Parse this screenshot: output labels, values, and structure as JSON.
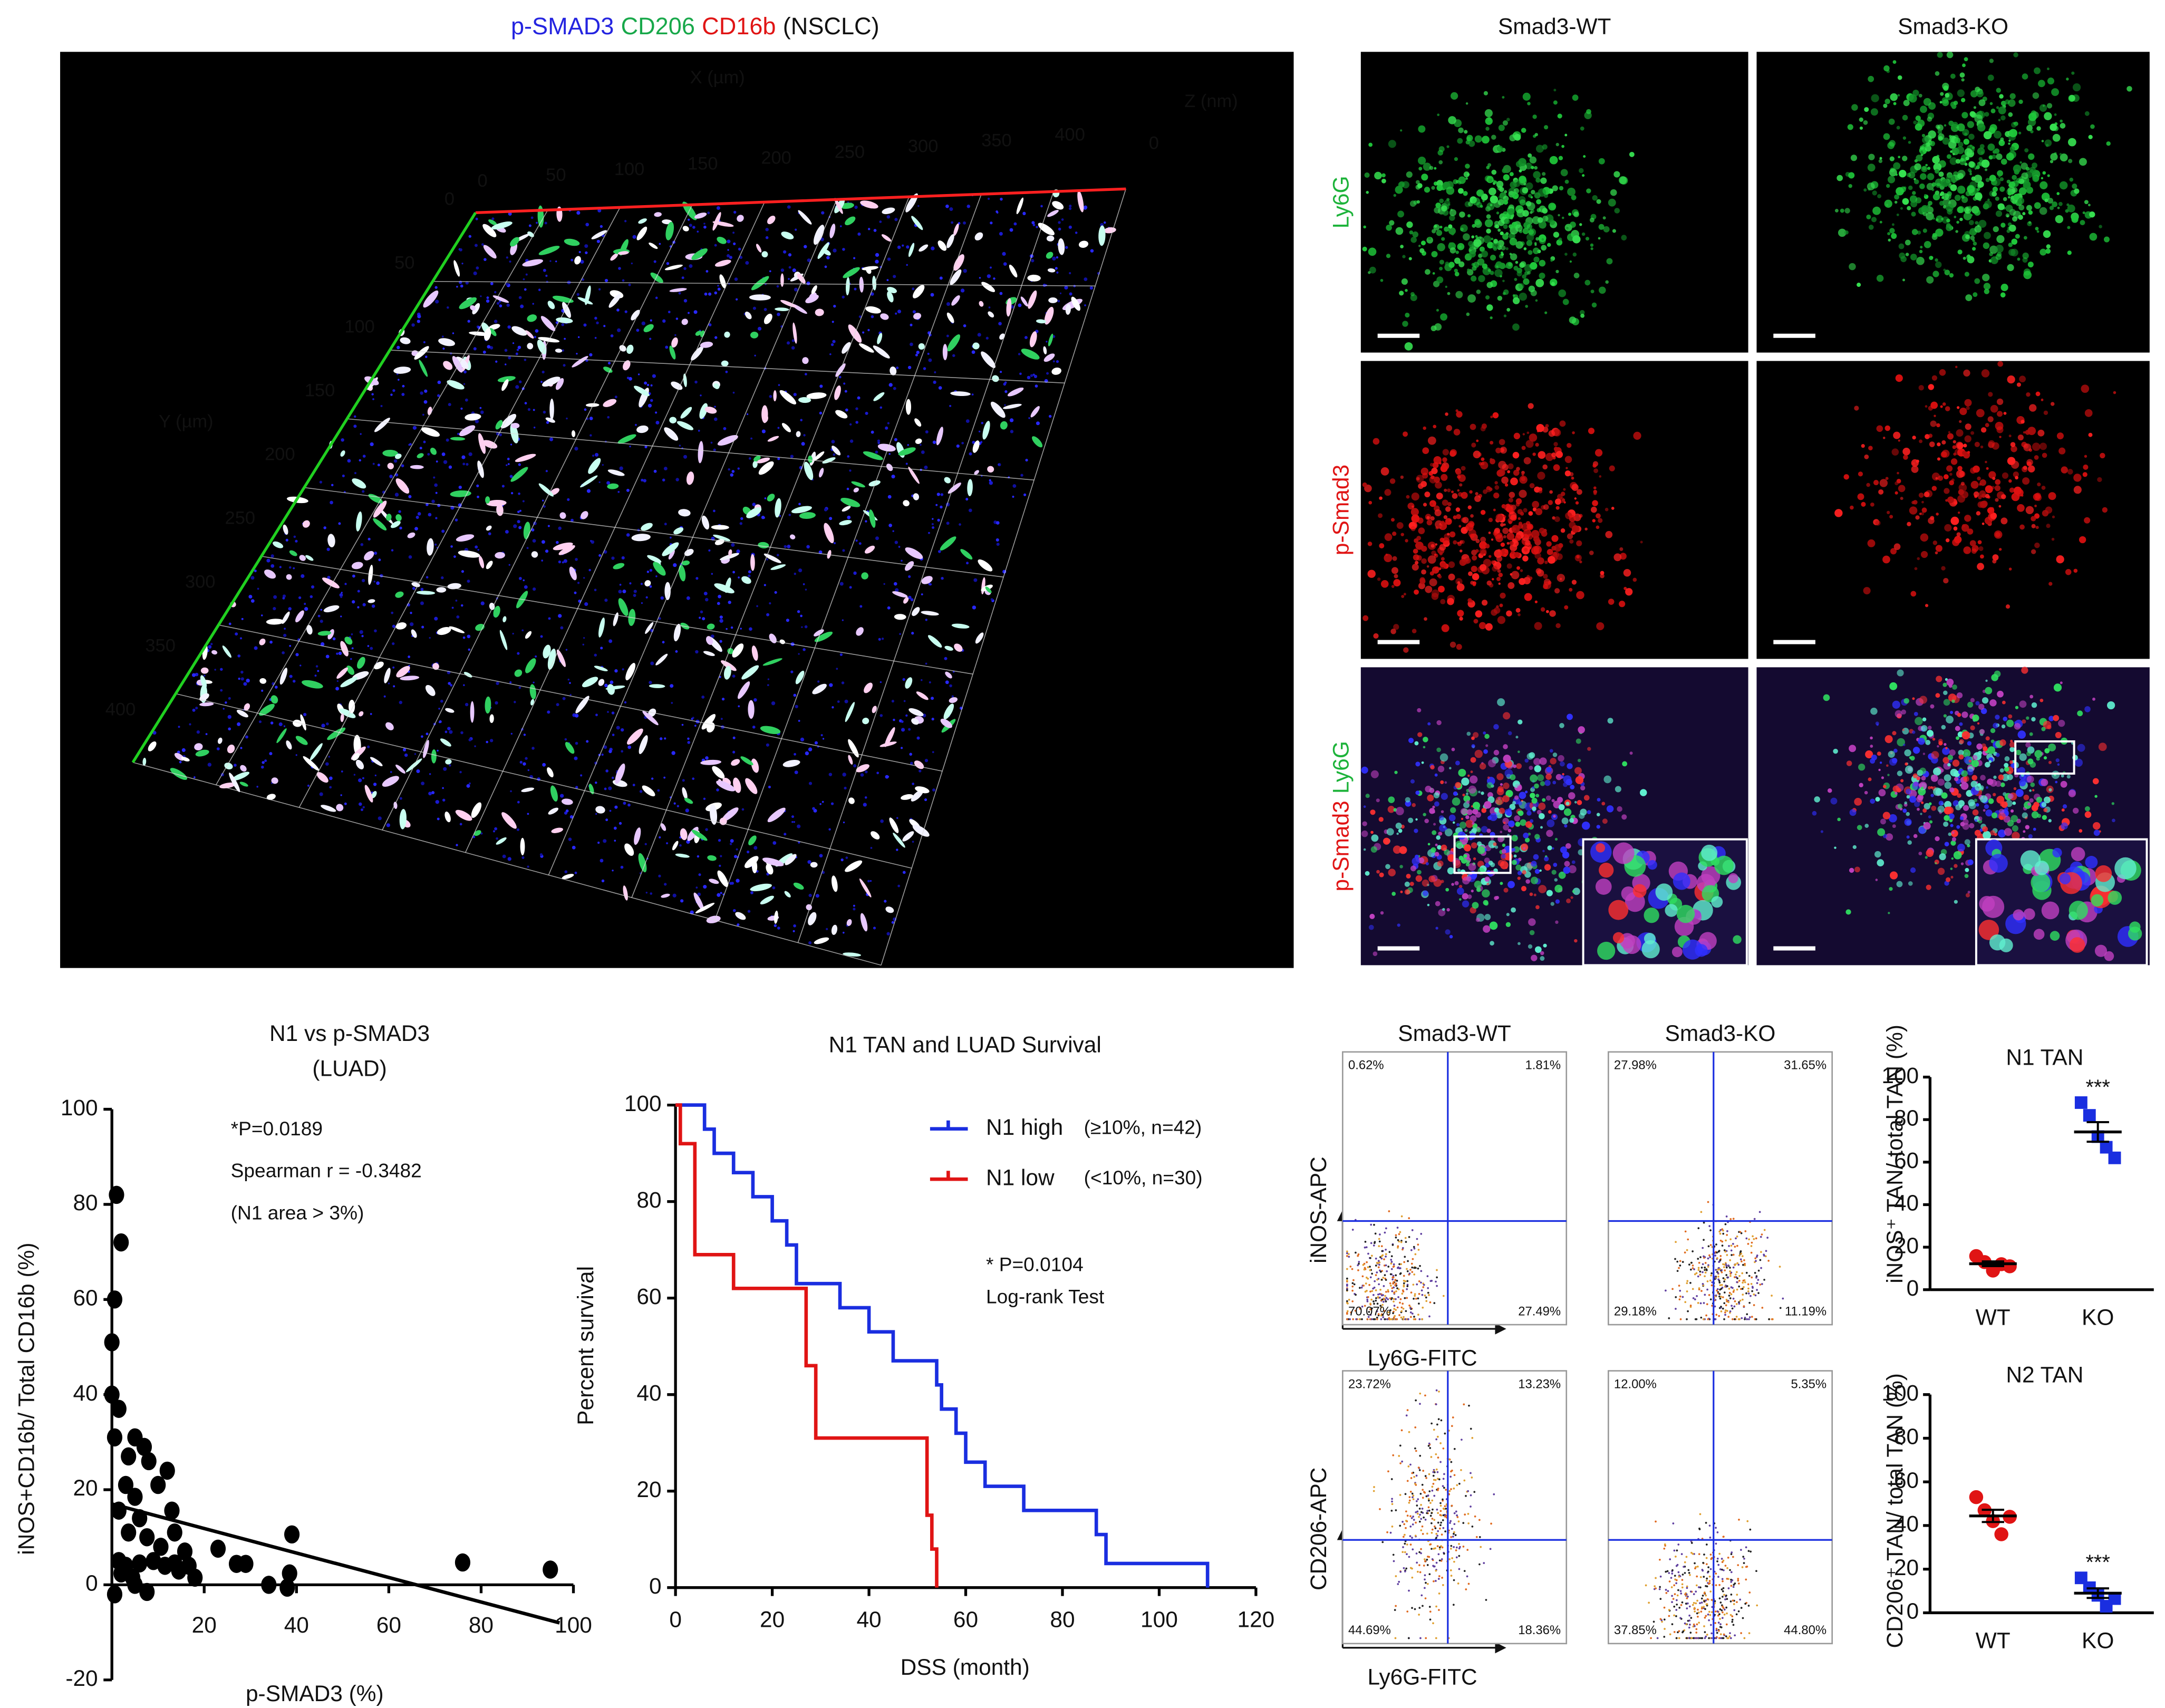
{
  "volume": {
    "title": [
      {
        "text": "p-SMAD3",
        "color": "#2424e0"
      },
      {
        "text": "CD206",
        "color": "#18a84a"
      },
      {
        "text": "CD16b",
        "color": "#e01414"
      },
      {
        "text": "(NSCLC)",
        "color": "#111111"
      }
    ],
    "x_axis_label": "X (µm)",
    "y_axis_label": "Y (µm)",
    "z_axis_label": "Z (nm)",
    "x_ticks": [
      0,
      50,
      100,
      150,
      200,
      250,
      300,
      350,
      400
    ],
    "y_ticks": [
      0,
      50,
      100,
      150,
      200,
      250,
      300,
      350,
      400
    ],
    "z_ticks": [
      0
    ]
  },
  "microscopy": {
    "columns": [
      "Smad3-WT",
      "Smad3-KO"
    ],
    "rows": [
      [
        {
          "text": "Ly6G",
          "color": "#1db33a"
        }
      ],
      [
        {
          "text": "p-Smad3",
          "color": "#e01414"
        }
      ],
      [
        {
          "text": "p-Smad3",
          "color": "#e01414"
        },
        {
          "text": "Ly6G",
          "color": "#1db33a"
        }
      ]
    ]
  },
  "flow": {
    "columns": [
      "Smad3-WT",
      "Smad3-KO"
    ],
    "rows": [
      {
        "y_label": "iNOS-APC",
        "x_label": "Ly6G-FITC",
        "percentages": [
          [
            "0.62%",
            "1.81%",
            "70.07%",
            "27.49%"
          ],
          [
            "27.98%",
            "31.65%",
            "29.18%",
            "11.19%"
          ]
        ]
      },
      {
        "y_label": "CD206-APC",
        "x_label": "Ly6G-FITC",
        "percentages": [
          [
            "23.72%",
            "13.23%",
            "44.69%",
            "18.36%"
          ],
          [
            "12.00%",
            "5.35%",
            "37.85%",
            "44.80%"
          ]
        ]
      }
    ]
  },
  "chart_data": [
    {
      "type": "scatter",
      "title": [
        "N1 vs p-SMAD3",
        "(LUAD)"
      ],
      "x_label": "p-SMAD3 (%)",
      "y_label": "iNOS+CD16b/ Total CD16b (%)",
      "annotations": [
        "*P=0.0189",
        "Spearman r = -0.3482",
        "(N1 area > 3%)"
      ],
      "color": "#000000",
      "x": [
        1,
        2,
        0.6,
        0,
        0,
        1.5,
        0.6,
        5,
        7,
        3.6,
        8,
        12,
        3,
        5,
        10,
        13,
        1.5,
        6,
        3.6,
        7.6,
        10.6,
        13.6,
        15.8,
        1.5,
        3,
        6,
        9,
        11.5,
        13.6,
        16.7,
        23,
        27,
        29,
        34,
        38,
        38.5,
        39,
        76,
        95,
        7.6,
        0.6,
        5,
        2,
        4.5,
        14.5,
        18
      ],
      "values": [
        82,
        72,
        60,
        51,
        40,
        37,
        31,
        31,
        29,
        27,
        26,
        24,
        21,
        18.5,
        21,
        15.6,
        15.6,
        14,
        11,
        10,
        8,
        11,
        7,
        5,
        4,
        4.5,
        5,
        4,
        4.5,
        4,
        7.6,
        4.4,
        4.4,
        0,
        -0.6,
        2.4,
        10.6,
        4.7,
        3.2,
        -1.5,
        -2,
        0,
        2.4,
        1.5,
        3,
        1.5
      ],
      "fit_line": {
        "x": [
          0,
          97
        ],
        "y": [
          17,
          -8
        ]
      },
      "xlim": [
        0,
        100
      ],
      "xticks": [
        20,
        40,
        60,
        80,
        100
      ],
      "ylim": [
        -20,
        100
      ],
      "yticks": [
        -20,
        0,
        20,
        40,
        60,
        80,
        100
      ]
    },
    {
      "type": "step",
      "title": "N1 TAN and LUAD Survival",
      "x_label": "DSS (month)",
      "y_label": "Percent survival",
      "annotations": [
        "* P=0.0104",
        "Log-rank Test"
      ],
      "series": [
        {
          "name": "N1 high",
          "note": "(≥10%, n=42)",
          "color": "#1a2ee0",
          "x": [
            0,
            6,
            8,
            12,
            16,
            20,
            23,
            25,
            34,
            40,
            45,
            54,
            55,
            58,
            60,
            64,
            72,
            87,
            89,
            110
          ],
          "values": [
            100,
            95,
            90,
            86,
            81,
            76,
            71,
            63,
            58,
            53,
            47,
            42,
            37,
            32,
            26,
            21,
            16,
            11,
            5,
            0
          ]
        },
        {
          "name": "N1 low",
          "note": "(<10%, n=30)",
          "color": "#e01414",
          "x": [
            0,
            1,
            4,
            12,
            27,
            29,
            52,
            53,
            54
          ],
          "values": [
            100,
            92,
            69,
            62,
            46,
            31,
            15,
            8,
            0
          ]
        }
      ],
      "xlim": [
        0,
        120
      ],
      "xticks": [
        0,
        20,
        40,
        60,
        80,
        100,
        120
      ],
      "ylim": [
        0,
        100
      ],
      "yticks": [
        0,
        20,
        40,
        60,
        80,
        100
      ]
    },
    {
      "type": "strip",
      "title": "N1 TAN",
      "y_label": "iNOS⁺ TAN/ total TAN (%)",
      "significance": "***",
      "categories": [
        "WT",
        "KO"
      ],
      "groups": [
        {
          "color": "#e01414",
          "marker": "circle",
          "values": [
            15.8,
            13,
            9,
            12,
            11
          ],
          "mean": 12.2,
          "sem": 1.1
        },
        {
          "color": "#1a2ee0",
          "marker": "square",
          "values": [
            88,
            82,
            72,
            67,
            62
          ],
          "mean": 74.2,
          "sem": 4.6
        }
      ],
      "ylim": [
        0,
        100
      ],
      "yticks": [
        0,
        20,
        40,
        60,
        80,
        100
      ]
    },
    {
      "type": "strip",
      "title": "N2 TAN",
      "y_label": "CD206⁺ TAN/ total TAN (%)",
      "significance": "***",
      "categories": [
        "WT",
        "KO"
      ],
      "groups": [
        {
          "color": "#e01414",
          "marker": "circle",
          "values": [
            53,
            47,
            42,
            36,
            44
          ],
          "mean": 44.4,
          "sem": 2.8
        },
        {
          "color": "#1a2ee0",
          "marker": "square",
          "values": [
            16,
            11.5,
            8,
            3,
            6.5
          ],
          "mean": 9,
          "sem": 2.2
        }
      ],
      "ylim": [
        0,
        100
      ],
      "yticks": [
        0,
        20,
        40,
        60,
        80,
        100
      ]
    }
  ]
}
